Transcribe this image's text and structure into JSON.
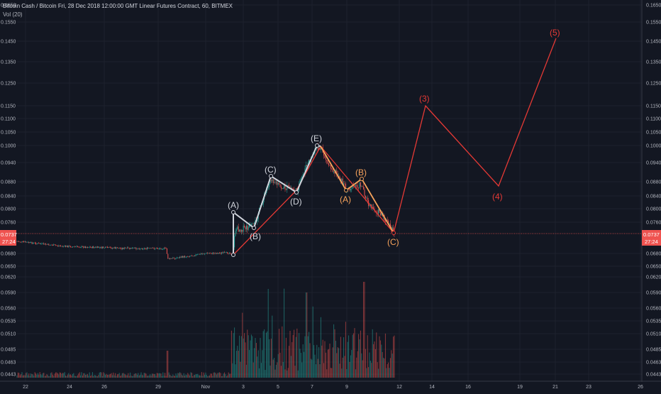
{
  "header": {
    "symbol_line": "Bitcoin Cash / Bitcoin Fri, 28 Dec 2018 12:00:00 GMT Linear Futures Contract, 60, BITMEX",
    "volume_label": "Vol (20)"
  },
  "price_scale": {
    "ticks": [
      "0.1650",
      "0.1550",
      "0.1450",
      "0.1350",
      "0.1250",
      "0.1150",
      "0.1100",
      "0.1050",
      "0.1000",
      "0.0940",
      "0.0880",
      "0.0840",
      "0.0800",
      "0.0760",
      "0.0680",
      "0.0650",
      "0.0620",
      "0.0590",
      "0.0560",
      "0.0535",
      "0.0510",
      "0.0485",
      "0.0463",
      "0.0443"
    ],
    "current_price": "0.0737",
    "countdown": "27:24"
  },
  "time_axis": {
    "ticks": [
      "22",
      "24",
      "26",
      "29",
      "Nov",
      "3",
      "5",
      "7",
      "9",
      "12",
      "14",
      "16",
      "19",
      "21",
      "23",
      "26"
    ]
  },
  "wave_labels": {
    "A": "(A)",
    "B": "(B)",
    "C": "(C)",
    "D": "(D)",
    "E": "(E)",
    "oA": "(A)",
    "oB": "(B)",
    "oC": "(C)",
    "r3": "(3)",
    "r4": "(4)",
    "r5": "(5)"
  },
  "colors": {
    "background": "#131722",
    "up": "#26a69a",
    "down": "#ef5350",
    "white_wave": "#d1d4dc",
    "orange_wave": "#f7a35c",
    "red_wave": "#e53935",
    "price_line": "#ef5350"
  }
}
